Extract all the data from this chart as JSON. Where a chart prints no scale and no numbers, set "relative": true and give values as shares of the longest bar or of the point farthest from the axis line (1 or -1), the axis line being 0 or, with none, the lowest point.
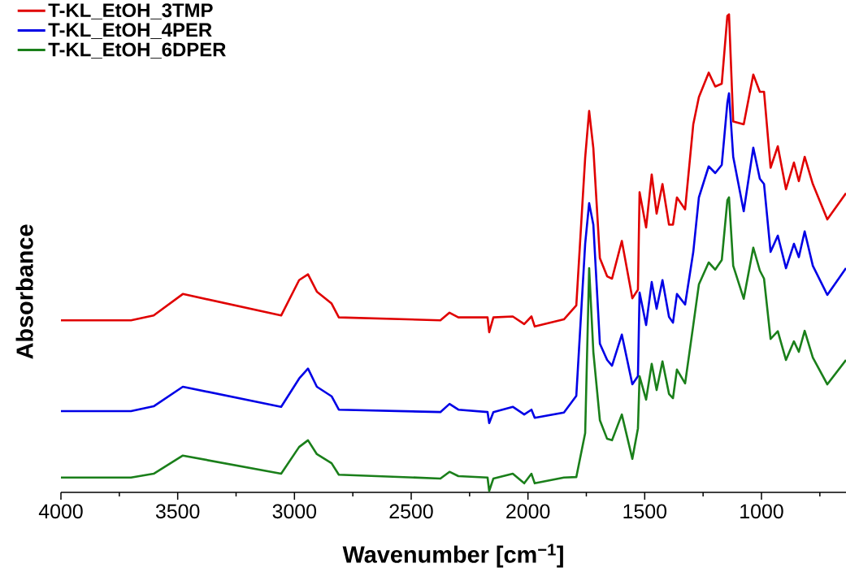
{
  "chart_data": {
    "type": "line",
    "relative": true,
    "xlabel": "Wavenumber [cm$^{−1}$]",
    "ylabel": "Absorbance",
    "legend": "top left",
    "tick_labels": "x",
    "xlim": [
      4000,
      638
    ],
    "xticks": [
      4000,
      {
        "value": 3750,
        "label": null
      },
      3500,
      {
        "value": 3250,
        "label": null
      },
      3000,
      {
        "value": 2750,
        "label": null
      },
      2500,
      {
        "value": 2250,
        "label": null
      },
      2000,
      {
        "value": 1750,
        "label": null
      },
      1500,
      {
        "value": 1250,
        "label": null
      },
      1000,
      {
        "value": 750,
        "label": null
      }
    ],
    "x": [
      4000,
      3700,
      3603,
      3478,
      3057,
      2980,
      2942,
      2904,
      2841,
      2810,
      2375,
      2336,
      2298,
      2173,
      2166,
      2148,
      2065,
      2016,
      1985,
      1971,
      1846,
      1793,
      1755,
      1738,
      1720,
      1692,
      1661,
      1640,
      1598,
      1553,
      1529,
      1522,
      1494,
      1470,
      1449,
      1424,
      1396,
      1379,
      1362,
      1327,
      1292,
      1268,
      1226,
      1198,
      1170,
      1146,
      1139,
      1121,
      1076,
      1035,
      1007,
      989,
      961,
      930,
      895,
      861,
      840,
      815,
      780,
      718,
      638
    ],
    "series": [
      {
        "name": "T-KL_EtOH_3TMP",
        "color": "#e00000",
        "values": [
          0.36,
          0.36,
          0.37,
          0.415,
          0.37,
          0.444,
          0.456,
          0.42,
          0.395,
          0.366,
          0.36,
          0.376,
          0.366,
          0.366,
          0.335,
          0.366,
          0.368,
          0.352,
          0.368,
          0.347,
          0.362,
          0.391,
          0.7,
          0.798,
          0.72,
          0.49,
          0.452,
          0.447,
          0.526,
          0.406,
          0.424,
          0.628,
          0.554,
          0.665,
          0.583,
          0.645,
          0.56,
          0.56,
          0.617,
          0.592,
          0.77,
          0.827,
          0.878,
          0.849,
          0.855,
          0.997,
          1.0,
          0.776,
          0.77,
          0.874,
          0.838,
          0.838,
          0.679,
          0.724,
          0.634,
          0.69,
          0.651,
          0.702,
          0.645,
          0.571,
          0.626
        ]
      },
      {
        "name": "T-KL_EtOH_4PER",
        "color": "#0000e6",
        "values": [
          0.17,
          0.17,
          0.18,
          0.221,
          0.179,
          0.238,
          0.259,
          0.221,
          0.201,
          0.173,
          0.168,
          0.185,
          0.173,
          0.168,
          0.145,
          0.168,
          0.179,
          0.163,
          0.173,
          0.156,
          0.167,
          0.202,
          0.52,
          0.605,
          0.56,
          0.311,
          0.277,
          0.265,
          0.33,
          0.226,
          0.243,
          0.418,
          0.35,
          0.44,
          0.384,
          0.444,
          0.367,
          0.355,
          0.415,
          0.393,
          0.503,
          0.617,
          0.682,
          0.668,
          0.685,
          0.815,
          0.835,
          0.702,
          0.588,
          0.721,
          0.656,
          0.645,
          0.503,
          0.537,
          0.469,
          0.52,
          0.492,
          0.546,
          0.474,
          0.413,
          0.469
        ]
      },
      {
        "name": "T-KL_EtOH_6DPER",
        "color": "#1a7f1a",
        "values": [
          0.031,
          0.031,
          0.039,
          0.077,
          0.039,
          0.095,
          0.109,
          0.08,
          0.061,
          0.037,
          0.029,
          0.043,
          0.034,
          0.031,
          0.003,
          0.029,
          0.039,
          0.019,
          0.039,
          0.019,
          0.031,
          0.032,
          0.124,
          0.469,
          0.294,
          0.151,
          0.112,
          0.109,
          0.163,
          0.07,
          0.134,
          0.243,
          0.194,
          0.269,
          0.214,
          0.274,
          0.206,
          0.197,
          0.257,
          0.228,
          0.35,
          0.435,
          0.481,
          0.466,
          0.486,
          0.611,
          0.617,
          0.474,
          0.405,
          0.512,
          0.464,
          0.447,
          0.321,
          0.337,
          0.277,
          0.316,
          0.294,
          0.338,
          0.282,
          0.226,
          0.277
        ]
      }
    ]
  }
}
